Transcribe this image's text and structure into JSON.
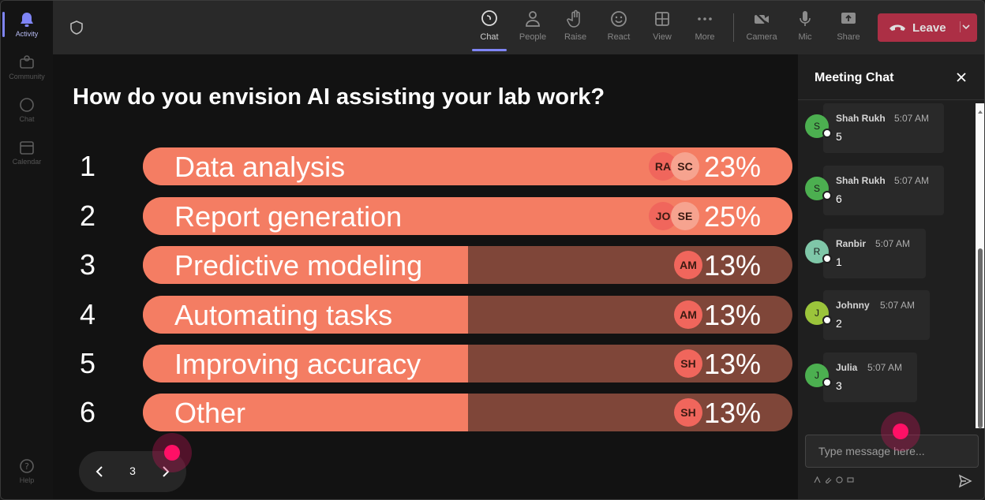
{
  "rail": {
    "items": [
      {
        "label": "Activity",
        "icon": "bell-icon"
      },
      {
        "label": "Community",
        "icon": "community-icon"
      },
      {
        "label": "Chat",
        "icon": "chat-icon"
      },
      {
        "label": "Calendar",
        "icon": "calendar-icon"
      }
    ],
    "help": {
      "label": "Help",
      "icon": "help-icon"
    }
  },
  "toolbar": {
    "buttons": [
      {
        "label": "Chat",
        "icon": "chat-icon",
        "active": true
      },
      {
        "label": "People",
        "icon": "people-icon"
      },
      {
        "label": "Raise",
        "icon": "hand-icon"
      },
      {
        "label": "React",
        "icon": "smiley-icon"
      },
      {
        "label": "View",
        "icon": "grid-icon"
      },
      {
        "label": "More",
        "icon": "ellipsis-icon"
      },
      {
        "label": "Camera",
        "icon": "camera-off-icon"
      },
      {
        "label": "Mic",
        "icon": "mic-icon"
      },
      {
        "label": "Share",
        "icon": "share-icon"
      }
    ],
    "leave_label": "Leave",
    "leave_color": "#c4314b"
  },
  "poll": {
    "question": "How do you envision AI assisting your lab work?",
    "accent_color": "#f47d63",
    "track_color": "#7f4639",
    "options": [
      {
        "num": "1",
        "label": "Data analysis",
        "pct": "23%",
        "value": 23,
        "avatars": [
          "RA",
          "SC"
        ]
      },
      {
        "num": "2",
        "label": "Report generation",
        "pct": "25%",
        "value": 25,
        "avatars": [
          "JO",
          "SE"
        ]
      },
      {
        "num": "3",
        "label": "Predictive modeling",
        "pct": "13%",
        "value": 13,
        "avatars": [
          "AM"
        ]
      },
      {
        "num": "4",
        "label": "Automating tasks",
        "pct": "13%",
        "value": 13,
        "avatars": [
          "AM"
        ]
      },
      {
        "num": "5",
        "label": "Improving accuracy",
        "pct": "13%",
        "value": 13,
        "avatars": [
          "SH"
        ]
      },
      {
        "num": "6",
        "label": "Other",
        "pct": "13%",
        "value": 13,
        "avatars": [
          "SH"
        ]
      }
    ],
    "pager": {
      "page": "3"
    }
  },
  "chat": {
    "title": "Meeting Chat",
    "messages": [
      {
        "initial": "S",
        "sender": "Shah Rukh",
        "time": "5:07 AM",
        "text": "5",
        "avatar_color": "#4caf50"
      },
      {
        "initial": "S",
        "sender": "Shah Rukh",
        "time": "5:07 AM",
        "text": "6",
        "avatar_color": "#4caf50"
      },
      {
        "initial": "R",
        "sender": "Ranbir",
        "time": "5:07 AM",
        "text": "1",
        "avatar_color": "#7fc7a8"
      },
      {
        "initial": "J",
        "sender": "Johnny",
        "time": "5:07 AM",
        "text": "2",
        "avatar_color": "#9bc43b"
      },
      {
        "initial": "J",
        "sender": "Julia",
        "time": "5:07 AM",
        "text": "3",
        "avatar_color": "#4caf50"
      }
    ],
    "composer_placeholder": "Type message here..."
  }
}
